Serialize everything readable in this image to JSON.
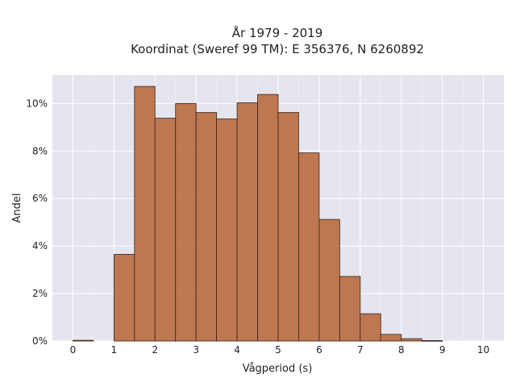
{
  "chart_data": {
    "type": "bar",
    "title_line1": "År 1979 - 2019",
    "title_line2": "Koordinat (Sweref 99 TM): E 356376, N 6260892",
    "xlabel": "Vågperiod (s)",
    "ylabel": "Andel",
    "xlim": [
      -0.5,
      10.5
    ],
    "ylim": [
      0,
      11.2
    ],
    "bin_width": 0.5,
    "bin_starts": [
      0,
      0.5,
      1.0,
      1.5,
      2.0,
      2.5,
      3.0,
      3.5,
      4.0,
      4.5,
      5.0,
      5.5,
      6.0,
      6.5,
      7.0,
      7.5,
      8.0,
      8.5,
      9.0
    ],
    "values": [
      0.03,
      0,
      3.65,
      10.72,
      9.38,
      10.0,
      9.62,
      9.35,
      10.03,
      10.38,
      9.62,
      7.92,
      5.12,
      2.72,
      1.15,
      0.28,
      0.1,
      0.02,
      0
    ],
    "xticks": [
      0,
      1,
      2,
      3,
      4,
      5,
      6,
      7,
      8,
      9,
      10
    ],
    "yticks": [
      0,
      2,
      4,
      6,
      8,
      10
    ],
    "ytick_labels": [
      "0%",
      "2%",
      "4%",
      "6%",
      "8%",
      "10%"
    ],
    "grid": true,
    "background": "#e5e5ef",
    "bar_color": "#b86a3f"
  }
}
